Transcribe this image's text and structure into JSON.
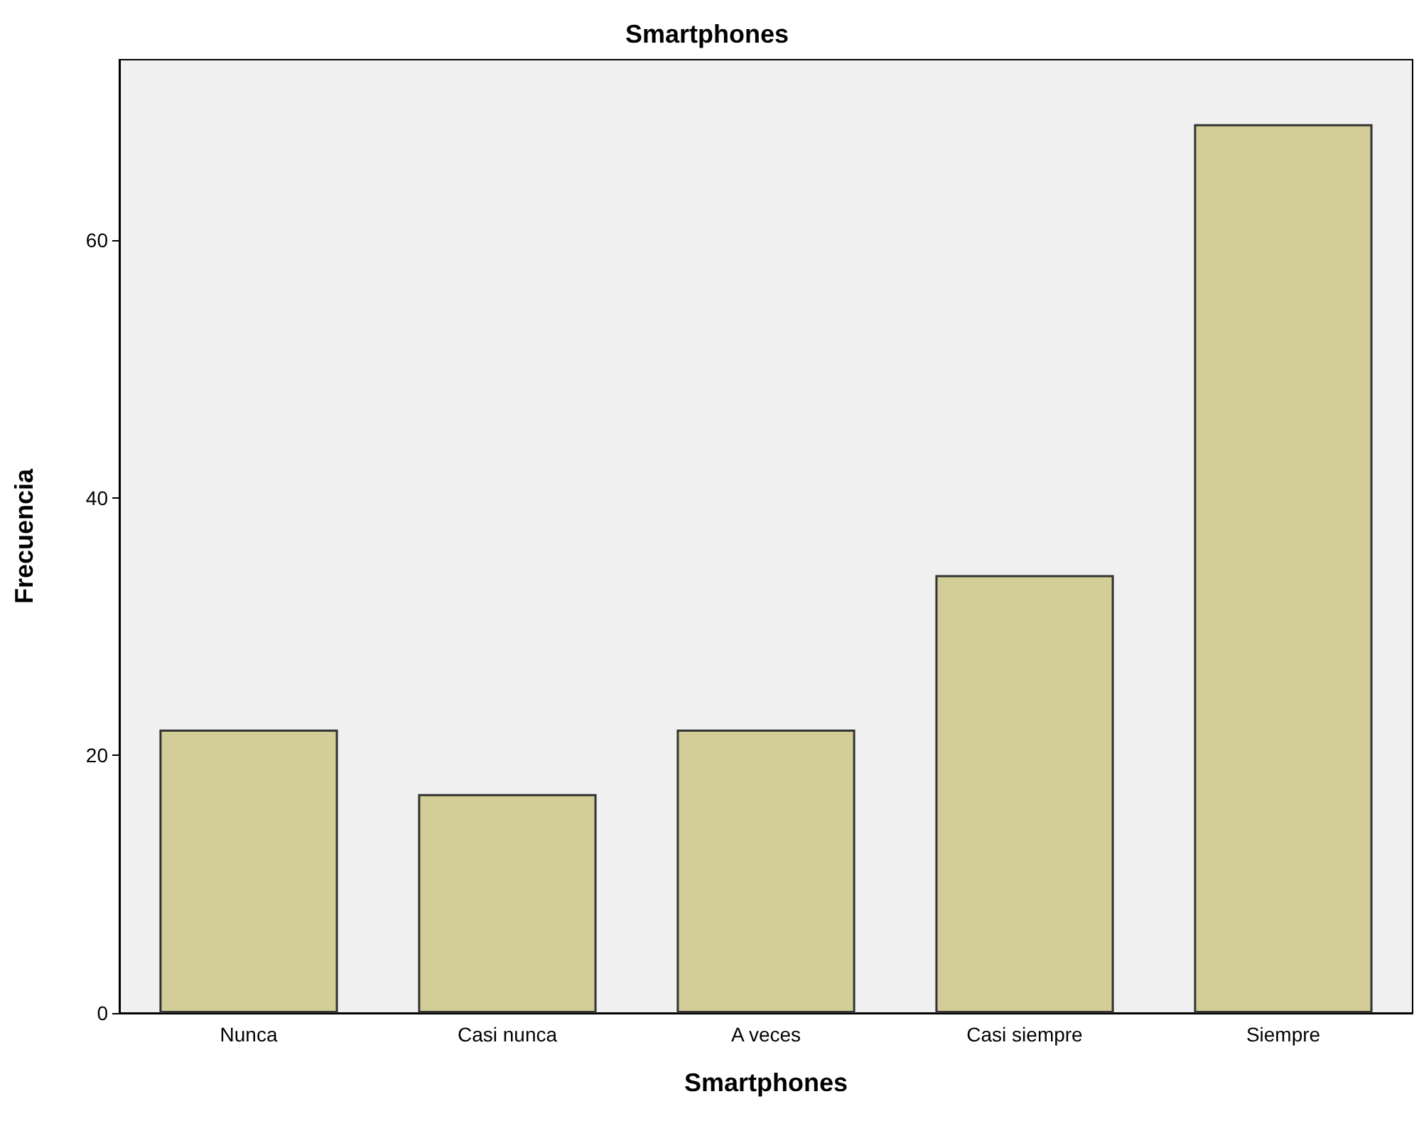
{
  "chart_data": {
    "type": "bar",
    "title": "Smartphones",
    "xlabel": "Smartphones",
    "ylabel": "Frecuencia",
    "categories": [
      "Nunca",
      "Casi nunca",
      "A veces",
      "Casi siempre",
      "Siempre"
    ],
    "values": [
      22,
      17,
      22,
      34,
      69
    ],
    "color": "#d3ce97",
    "ylim": [
      0,
      74
    ],
    "yticks": [
      0,
      20,
      40,
      60
    ],
    "grid": false
  }
}
